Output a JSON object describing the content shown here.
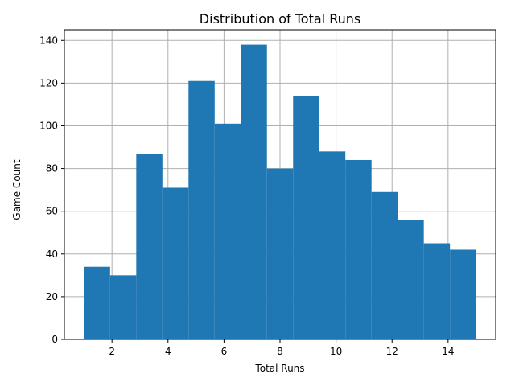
{
  "chart_data": {
    "type": "bar",
    "title": "Distribution of Total Runs",
    "xlabel": "Total Runs",
    "ylabel": "Game Count",
    "xlim": [
      0.3,
      15.7
    ],
    "ylim": [
      0,
      145
    ],
    "xticks": [
      2,
      4,
      6,
      8,
      10,
      12,
      14
    ],
    "yticks": [
      0,
      20,
      40,
      60,
      80,
      100,
      120,
      140
    ],
    "grid": true,
    "bar_color": "#1f77b4",
    "bins": [
      {
        "x0": 1.0,
        "x1": 1.933333,
        "value": 34
      },
      {
        "x0": 1.933333,
        "x1": 2.866667,
        "value": 30
      },
      {
        "x0": 2.866667,
        "x1": 3.8,
        "value": 87
      },
      {
        "x0": 3.8,
        "x1": 4.733333,
        "value": 71
      },
      {
        "x0": 4.733333,
        "x1": 5.666667,
        "value": 121
      },
      {
        "x0": 5.666667,
        "x1": 6.6,
        "value": 101
      },
      {
        "x0": 6.6,
        "x1": 7.533333,
        "value": 138
      },
      {
        "x0": 7.533333,
        "x1": 8.466667,
        "value": 80
      },
      {
        "x0": 8.466667,
        "x1": 9.4,
        "value": 114
      },
      {
        "x0": 9.4,
        "x1": 10.333333,
        "value": 88
      },
      {
        "x0": 10.333333,
        "x1": 11.266667,
        "value": 84
      },
      {
        "x0": 11.266667,
        "x1": 12.2,
        "value": 69
      },
      {
        "x0": 12.2,
        "x1": 13.133333,
        "value": 56
      },
      {
        "x0": 13.133333,
        "x1": 14.066667,
        "value": 45
      },
      {
        "x0": 14.066667,
        "x1": 15.0,
        "value": 42
      }
    ]
  }
}
